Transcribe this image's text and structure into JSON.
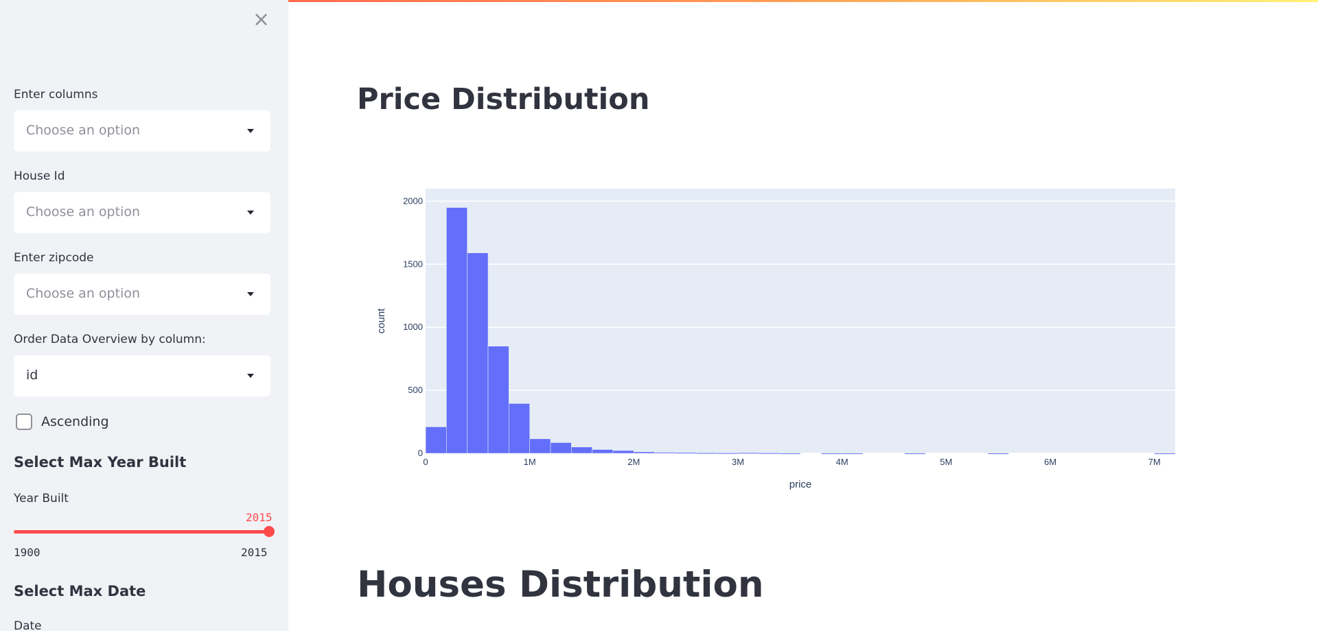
{
  "sidebar": {
    "close_icon": "close-icon",
    "columns": {
      "label": "Enter columns",
      "placeholder": "Choose an option"
    },
    "house_id": {
      "label": "House Id",
      "placeholder": "Choose an option"
    },
    "zipcode": {
      "label": "Enter zipcode",
      "placeholder": "Choose an option"
    },
    "order": {
      "label": "Order Data Overview by column:",
      "value": "id"
    },
    "ascending": {
      "label": "Ascending",
      "checked": false
    },
    "year_section": {
      "title": "Select Max Year Built",
      "slider_label": "Year Built",
      "value": "2015",
      "min": "1900",
      "max": "2015"
    },
    "date_section": {
      "title": "Select Max Date",
      "label": "Date"
    }
  },
  "main": {
    "title1": "Price Distribution",
    "title2": "Houses Distribution"
  },
  "colors": {
    "accent": "#ff4b4b",
    "bar": "#636efa",
    "plot_bg": "#e5ecf6"
  },
  "chart_data": {
    "type": "bar",
    "xlabel": "price",
    "ylabel": "count",
    "xlim": [
      0,
      7200000
    ],
    "ylim": [
      0,
      2100
    ],
    "x_ticks": [
      {
        "v": 0,
        "label": "0"
      },
      {
        "v": 1000000,
        "label": "1M"
      },
      {
        "v": 2000000,
        "label": "2M"
      },
      {
        "v": 3000000,
        "label": "3M"
      },
      {
        "v": 4000000,
        "label": "4M"
      },
      {
        "v": 5000000,
        "label": "5M"
      },
      {
        "v": 6000000,
        "label": "6M"
      },
      {
        "v": 7000000,
        "label": "7M"
      }
    ],
    "y_ticks": [
      {
        "v": 0,
        "label": "0"
      },
      {
        "v": 500,
        "label": "500"
      },
      {
        "v": 1000,
        "label": "1000"
      },
      {
        "v": 1500,
        "label": "1500"
      },
      {
        "v": 2000,
        "label": "2000"
      }
    ],
    "grid": true,
    "bin_width": 200000,
    "bins": [
      0,
      200000,
      400000,
      600000,
      800000,
      1000000,
      1200000,
      1400000,
      1600000,
      1800000,
      2000000,
      2200000,
      2400000,
      2600000,
      2800000,
      3000000,
      3200000,
      3400000,
      3600000,
      3800000,
      4000000,
      4200000,
      4400000,
      4600000,
      4800000,
      5000000,
      5200000,
      5400000,
      5600000,
      5800000,
      6000000,
      6200000,
      6400000,
      6600000,
      6800000,
      7000000
    ],
    "values": [
      210,
      1950,
      1590,
      850,
      395,
      115,
      85,
      50,
      30,
      22,
      12,
      8,
      6,
      4,
      3,
      5,
      3,
      2,
      0,
      2,
      2,
      0,
      0,
      2,
      0,
      0,
      0,
      1,
      0,
      0,
      0,
      0,
      0,
      0,
      0,
      1
    ]
  }
}
